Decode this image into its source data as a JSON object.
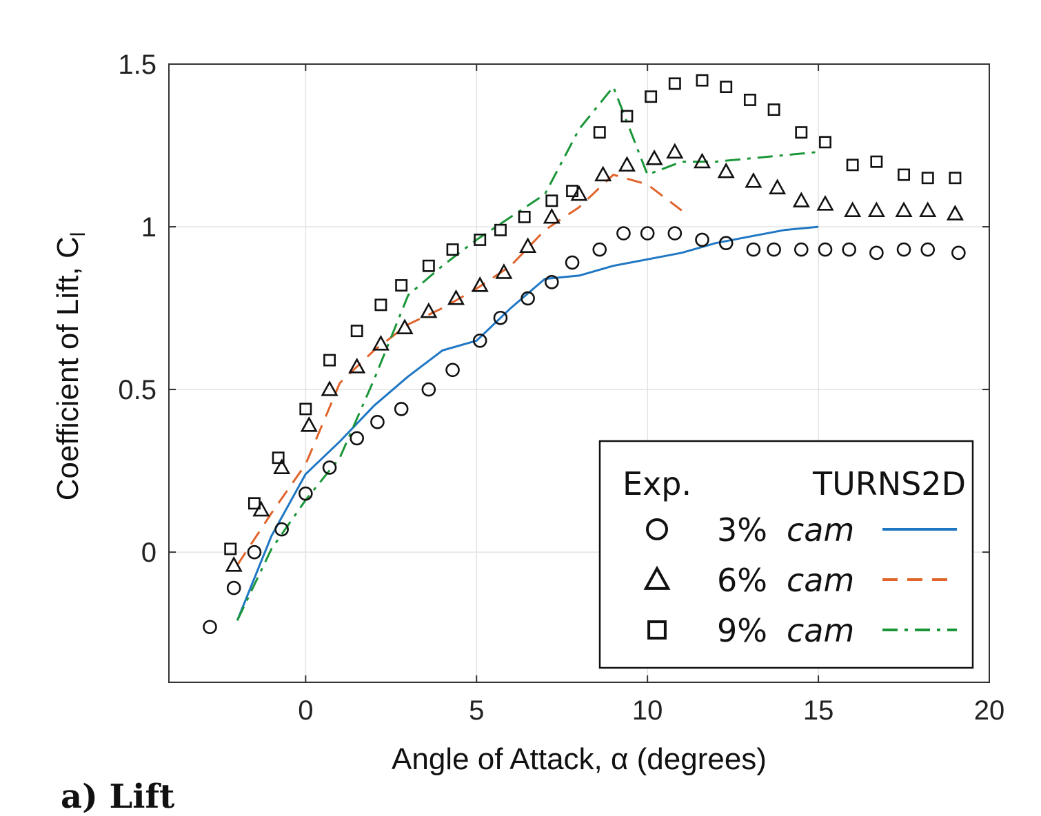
{
  "chart_data": {
    "type": "scatter",
    "xlabel": "Angle of Attack, α (degrees)",
    "ylabel": "Coefficient of Lift, C",
    "ylabel_sub": "l",
    "xlim": [
      -4,
      20
    ],
    "ylim": [
      -0.4,
      1.5
    ],
    "xticks": [
      0,
      5,
      10,
      15,
      20
    ],
    "yticks": [
      0,
      0.5,
      1,
      1.5
    ],
    "grid": true,
    "legend": {
      "placement": "bottom-right",
      "exp_header": "Exp.",
      "sim_header": "TURNS2D",
      "entries": [
        {
          "label": "3% cam",
          "pct": "3%",
          "word": "cam",
          "marker": "circle",
          "color": "#1f77c4",
          "dash": "solid"
        },
        {
          "label": "6% cam",
          "pct": "6%",
          "word": "cam",
          "marker": "triangle",
          "color": "#e0642c",
          "dash": "dashed"
        },
        {
          "label": "9% cam",
          "pct": "9%",
          "word": "cam",
          "marker": "square",
          "color": "#1a9638",
          "dash": "dashdot"
        }
      ]
    },
    "experimental": [
      {
        "name": "3% cam",
        "marker": "circle",
        "points": [
          [
            -2.8,
            -0.23
          ],
          [
            -2.1,
            -0.11
          ],
          [
            -1.5,
            0.0
          ],
          [
            -0.7,
            0.07
          ],
          [
            0,
            0.18
          ],
          [
            0.7,
            0.26
          ],
          [
            1.5,
            0.35
          ],
          [
            2.1,
            0.4
          ],
          [
            2.8,
            0.44
          ],
          [
            3.6,
            0.5
          ],
          [
            4.3,
            0.56
          ],
          [
            5.1,
            0.65
          ],
          [
            5.7,
            0.72
          ],
          [
            6.5,
            0.78
          ],
          [
            7.2,
            0.83
          ],
          [
            7.8,
            0.89
          ],
          [
            8.6,
            0.93
          ],
          [
            9.3,
            0.98
          ],
          [
            10,
            0.98
          ],
          [
            10.8,
            0.98
          ],
          [
            11.6,
            0.96
          ],
          [
            12.3,
            0.95
          ],
          [
            13.1,
            0.93
          ],
          [
            13.7,
            0.93
          ],
          [
            14.5,
            0.93
          ],
          [
            15.2,
            0.93
          ],
          [
            15.9,
            0.93
          ],
          [
            16.7,
            0.92
          ],
          [
            17.5,
            0.93
          ],
          [
            18.2,
            0.93
          ],
          [
            19.1,
            0.92
          ]
        ]
      },
      {
        "name": "6% cam",
        "marker": "triangle",
        "points": [
          [
            -2.1,
            -0.04
          ],
          [
            -1.3,
            0.13
          ],
          [
            -0.7,
            0.26
          ],
          [
            0.1,
            0.39
          ],
          [
            0.7,
            0.5
          ],
          [
            1.5,
            0.57
          ],
          [
            2.2,
            0.64
          ],
          [
            2.9,
            0.69
          ],
          [
            3.6,
            0.74
          ],
          [
            4.4,
            0.78
          ],
          [
            5.1,
            0.82
          ],
          [
            5.8,
            0.86
          ],
          [
            6.5,
            0.94
          ],
          [
            7.2,
            1.03
          ],
          [
            8,
            1.1
          ],
          [
            8.7,
            1.16
          ],
          [
            9.4,
            1.19
          ],
          [
            10.2,
            1.21
          ],
          [
            10.8,
            1.23
          ],
          [
            11.6,
            1.2
          ],
          [
            12.3,
            1.17
          ],
          [
            13.1,
            1.14
          ],
          [
            13.8,
            1.12
          ],
          [
            14.5,
            1.08
          ],
          [
            15.2,
            1.07
          ],
          [
            16,
            1.05
          ],
          [
            16.7,
            1.05
          ],
          [
            17.5,
            1.05
          ],
          [
            18.2,
            1.05
          ],
          [
            19,
            1.04
          ]
        ]
      },
      {
        "name": "9% cam",
        "marker": "square",
        "points": [
          [
            -2.2,
            0.01
          ],
          [
            -1.5,
            0.15
          ],
          [
            -0.8,
            0.29
          ],
          [
            0,
            0.44
          ],
          [
            0.7,
            0.59
          ],
          [
            1.5,
            0.68
          ],
          [
            2.2,
            0.76
          ],
          [
            2.8,
            0.82
          ],
          [
            3.6,
            0.88
          ],
          [
            4.3,
            0.93
          ],
          [
            5.1,
            0.96
          ],
          [
            5.7,
            0.99
          ],
          [
            6.4,
            1.03
          ],
          [
            7.2,
            1.08
          ],
          [
            7.8,
            1.11
          ],
          [
            8.6,
            1.29
          ],
          [
            9.4,
            1.34
          ],
          [
            10.1,
            1.4
          ],
          [
            10.8,
            1.44
          ],
          [
            11.6,
            1.45
          ],
          [
            12.3,
            1.43
          ],
          [
            13,
            1.39
          ],
          [
            13.7,
            1.36
          ],
          [
            14.5,
            1.29
          ],
          [
            15.2,
            1.26
          ],
          [
            16,
            1.19
          ],
          [
            16.7,
            1.2
          ],
          [
            17.5,
            1.16
          ],
          [
            18.2,
            1.15
          ],
          [
            19,
            1.15
          ]
        ]
      }
    ],
    "series": [
      {
        "name": "3% cam",
        "color": "#1f77c4",
        "dash": "solid",
        "points": [
          [
            -2,
            -0.21
          ],
          [
            -1,
            0.05
          ],
          [
            0,
            0.24
          ],
          [
            1,
            0.34
          ],
          [
            2,
            0.45
          ],
          [
            3,
            0.54
          ],
          [
            4,
            0.62
          ],
          [
            5,
            0.65
          ],
          [
            6,
            0.75
          ],
          [
            7,
            0.84
          ],
          [
            8,
            0.85
          ],
          [
            9,
            0.88
          ],
          [
            10,
            0.9
          ],
          [
            11,
            0.92
          ],
          [
            12,
            0.95
          ],
          [
            13,
            0.97
          ],
          [
            14,
            0.99
          ],
          [
            15,
            1.0
          ]
        ]
      },
      {
        "name": "6% cam",
        "color": "#e0642c",
        "dash": "dashed",
        "points": [
          [
            -2,
            -0.04
          ],
          [
            -1,
            0.12
          ],
          [
            0,
            0.27
          ],
          [
            1,
            0.52
          ],
          [
            2,
            0.62
          ],
          [
            3,
            0.7
          ],
          [
            4,
            0.75
          ],
          [
            5,
            0.81
          ],
          [
            6,
            0.88
          ],
          [
            7,
            0.99
          ],
          [
            8,
            1.06
          ],
          [
            9,
            1.16
          ],
          [
            10,
            1.13
          ],
          [
            11,
            1.05
          ]
        ]
      },
      {
        "name": "9% cam",
        "color": "#1a9638",
        "dash": "dashdot",
        "points": [
          [
            -2,
            -0.21
          ],
          [
            -1,
            0.01
          ],
          [
            0,
            0.16
          ],
          [
            1,
            0.29
          ],
          [
            2,
            0.53
          ],
          [
            3,
            0.79
          ],
          [
            4,
            0.88
          ],
          [
            5,
            0.96
          ],
          [
            6,
            1.03
          ],
          [
            7,
            1.1
          ],
          [
            8,
            1.3
          ],
          [
            9,
            1.43
          ],
          [
            10,
            1.16
          ],
          [
            11,
            1.2
          ],
          [
            12,
            1.2
          ],
          [
            13,
            1.21
          ],
          [
            14,
            1.22
          ],
          [
            15,
            1.23
          ]
        ]
      }
    ]
  },
  "caption": "a) Lift"
}
